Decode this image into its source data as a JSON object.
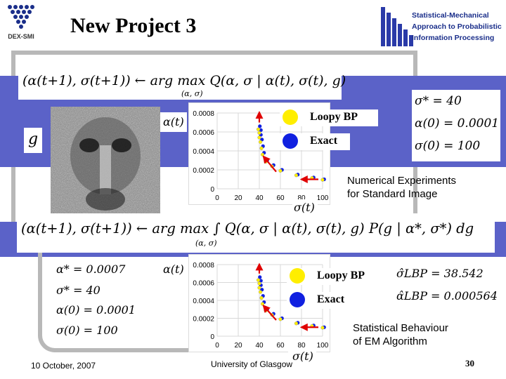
{
  "header": {
    "logo_left_text": "DEX-SMI",
    "title": "New Project 3",
    "logo_right_lines": [
      "Statistical-Mechanical",
      "Approach to Probabilistic",
      "Information Processing"
    ]
  },
  "top": {
    "update_equation": "(α(t+1), σ(t+1)) ← arg max Q(α, σ | α(t), σ(t), g)",
    "argmax_sub": "(α, σ)",
    "g_label": "g",
    "y_axis_label": "α(t)",
    "x_axis_label": "σ(t)",
    "y_ticks": [
      "0.0008",
      "0.0006",
      "0.0004",
      "0.0002",
      "0"
    ],
    "x_ticks": [
      "0",
      "20",
      "40",
      "60",
      "80",
      "100"
    ],
    "legend": [
      {
        "label": "Loopy BP",
        "color": "#ffee00"
      },
      {
        "label": "Exact",
        "color": "#1020e0"
      }
    ],
    "params": [
      "σ* = 40",
      "α(0) = 0.0001",
      "σ(0) = 100"
    ],
    "caption_lines": [
      "Numerical Experiments",
      "for Standard Image"
    ]
  },
  "bottom": {
    "update_equation": "(α(t+1), σ(t+1)) ← arg max ∫ Q(α, σ | α(t), σ(t), g) P(g | α*, σ*) dg",
    "argmax_sub": "(α, σ)",
    "params": [
      "α* = 0.0007",
      "σ* = 40",
      "α(0) = 0.0001",
      "σ(0) = 100"
    ],
    "y_axis_label": "α(t)",
    "x_axis_label": "σ(t)",
    "y_ticks": [
      "0.0008",
      "0.0006",
      "0.0004",
      "0.0002",
      "0"
    ],
    "x_ticks": [
      "0",
      "20",
      "40",
      "60",
      "80",
      "100"
    ],
    "legend": [
      {
        "label": "Loopy BP",
        "color": "#ffee00"
      },
      {
        "label": "Exact",
        "color": "#1020e0"
      }
    ],
    "results": [
      "σ̂LBP = 38.542",
      "α̂LBP = 0.000564"
    ],
    "caption_lines": [
      "Statistical Behaviour",
      "of EM Algorithm"
    ]
  },
  "footer": {
    "date": "10 October, 2007",
    "university": "University of Glasgow",
    "page": "30"
  },
  "colors": {
    "band": "#5b62c8",
    "frame": "#b8b8b8",
    "arrow": "#e00000"
  }
}
